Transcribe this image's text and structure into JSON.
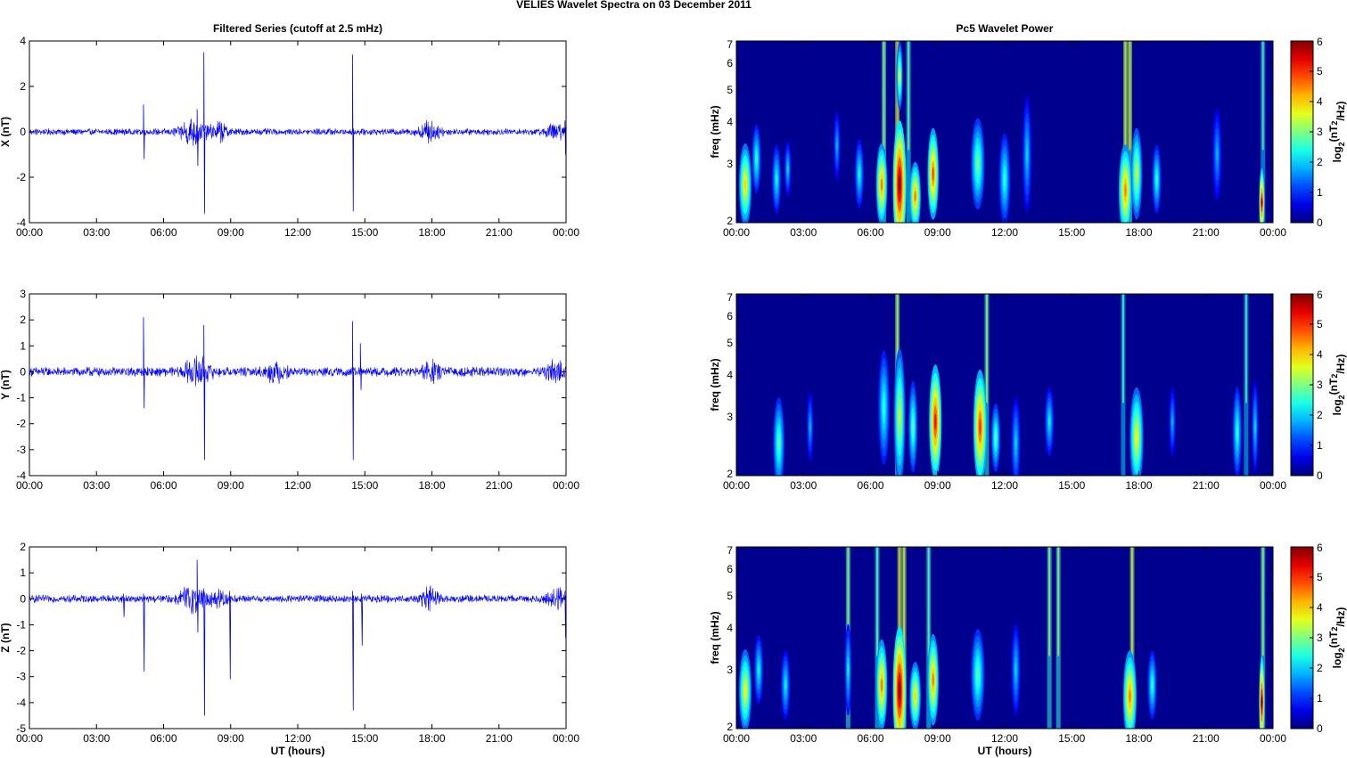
{
  "figure": {
    "title": "VELIES Wavelet Spectra on 03 December  2011",
    "left_title": "Filtered Series (cutoff at 2.5 mHz)",
    "right_title": "Pc5 Wavelet Power",
    "xlabel": "UT (hours)"
  },
  "chart_data": [
    {
      "type": "line",
      "component": "X",
      "ylabel": "X (nT)",
      "xlim_hours": [
        0,
        24
      ],
      "xticks": [
        "00:00",
        "03:00",
        "06:00",
        "09:00",
        "12:00",
        "15:00",
        "18:00",
        "21:00",
        "00:00"
      ],
      "ylim": [
        -4,
        4
      ],
      "yticks": [
        "4",
        "2",
        "0",
        "-2",
        "-4"
      ],
      "line_color": "#0000ff",
      "noise_amplitude": 0.12,
      "activity": [
        {
          "t": 7.3,
          "amp": 0.5,
          "width": 0.8
        },
        {
          "t": 8.5,
          "amp": 0.3,
          "width": 0.5
        },
        {
          "t": 17.9,
          "amp": 0.35,
          "width": 0.6
        },
        {
          "t": 23.5,
          "amp": 0.25,
          "width": 0.6
        }
      ],
      "spikes": [
        {
          "t": 5.1,
          "max": 1.2,
          "min": -1.2
        },
        {
          "t": 7.5,
          "max": 1.0,
          "min": -1.5
        },
        {
          "t": 7.8,
          "max": 3.5,
          "min": -3.6
        },
        {
          "t": 14.45,
          "max": 3.4,
          "min": -3.5
        },
        {
          "t": 23.95,
          "max": 0.5,
          "min": -1.0
        }
      ]
    },
    {
      "type": "line",
      "component": "Y",
      "ylabel": "Y (nT)",
      "xlim_hours": [
        0,
        24
      ],
      "xticks": [
        "00:00",
        "03:00",
        "06:00",
        "09:00",
        "12:00",
        "15:00",
        "18:00",
        "21:00",
        "00:00"
      ],
      "ylim": [
        -4,
        3
      ],
      "yticks": [
        "3",
        "2",
        "1",
        "0",
        "-1",
        "-2",
        "-3",
        "-4"
      ],
      "line_color": "#0000ff",
      "noise_amplitude": 0.15,
      "activity": [
        {
          "t": 7.5,
          "amp": 0.4,
          "width": 0.8
        },
        {
          "t": 11.0,
          "amp": 0.3,
          "width": 0.6
        },
        {
          "t": 18.0,
          "amp": 0.25,
          "width": 0.6
        },
        {
          "t": 23.5,
          "amp": 0.3,
          "width": 0.6
        }
      ],
      "spikes": [
        {
          "t": 5.1,
          "max": 2.1,
          "min": -1.4
        },
        {
          "t": 7.8,
          "max": 1.8,
          "min": -3.4
        },
        {
          "t": 14.45,
          "max": 1.95,
          "min": -3.4
        },
        {
          "t": 14.8,
          "max": 1.1,
          "min": -0.7
        }
      ]
    },
    {
      "type": "line",
      "component": "Z",
      "ylabel": "Z (nT)",
      "xlim_hours": [
        0,
        24
      ],
      "xticks": [
        "00:00",
        "03:00",
        "06:00",
        "09:00",
        "12:00",
        "15:00",
        "18:00",
        "21:00",
        "00:00"
      ],
      "ylim": [
        -5,
        2
      ],
      "yticks": [
        "2",
        "1",
        "0",
        "-1",
        "-2",
        "-3",
        "-4",
        "-5"
      ],
      "line_color": "#0000ff",
      "noise_amplitude": 0.12,
      "activity": [
        {
          "t": 7.3,
          "amp": 0.4,
          "width": 0.8
        },
        {
          "t": 8.5,
          "amp": 0.25,
          "width": 0.5
        },
        {
          "t": 17.9,
          "amp": 0.3,
          "width": 0.6
        },
        {
          "t": 23.6,
          "amp": 0.25,
          "width": 0.6
        }
      ],
      "spikes": [
        {
          "t": 4.2,
          "max": 0.2,
          "min": -0.7
        },
        {
          "t": 5.1,
          "max": 0.2,
          "min": -2.8
        },
        {
          "t": 7.5,
          "max": 1.5,
          "min": -1.3
        },
        {
          "t": 7.8,
          "max": 0.4,
          "min": -4.5
        },
        {
          "t": 8.95,
          "max": 0.3,
          "min": -3.1
        },
        {
          "t": 14.45,
          "max": 0.3,
          "min": -4.3
        },
        {
          "t": 14.85,
          "max": 0.2,
          "min": -1.8
        },
        {
          "t": 23.95,
          "max": 0.3,
          "min": -1.5
        }
      ]
    },
    {
      "type": "heatmap",
      "component": "X",
      "ylabel": "freq (mHz)",
      "yscale": "log",
      "ylim": [
        2,
        7
      ],
      "yticks": [
        "7",
        "6",
        "5",
        "4",
        "3",
        "2"
      ],
      "xticks": [
        "00:00",
        "03:00",
        "06:00",
        "09:00",
        "12:00",
        "15:00",
        "18:00",
        "21:00",
        "00:00"
      ],
      "colorbar": {
        "label": "log2(nT2/Hz)",
        "range": [
          0,
          6
        ],
        "ticks": [
          "6",
          "5",
          "4",
          "3",
          "2",
          "1",
          "0"
        ],
        "colormap": "jet"
      },
      "blobs": [
        {
          "t": 0.4,
          "f": 2.6,
          "dt": 0.28,
          "df": 0.18,
          "p": 4.0
        },
        {
          "t": 0.9,
          "f": 3.1,
          "dt": 0.2,
          "df": 0.15,
          "p": 2.5
        },
        {
          "t": 1.8,
          "f": 2.7,
          "dt": 0.2,
          "df": 0.15,
          "p": 2.3
        },
        {
          "t": 2.3,
          "f": 2.9,
          "dt": 0.15,
          "df": 0.12,
          "p": 2.0
        },
        {
          "t": 4.5,
          "f": 3.4,
          "dt": 0.15,
          "df": 0.15,
          "p": 1.8
        },
        {
          "t": 5.5,
          "f": 2.8,
          "dt": 0.2,
          "df": 0.15,
          "p": 2.3
        },
        {
          "t": 6.5,
          "f": 2.6,
          "dt": 0.25,
          "df": 0.18,
          "p": 4.5
        },
        {
          "t": 7.3,
          "f": 2.6,
          "dt": 0.3,
          "df": 0.28,
          "p": 6.0
        },
        {
          "t": 7.3,
          "f": 5.5,
          "dt": 0.14,
          "df": 0.15,
          "p": 3.5
        },
        {
          "t": 8.0,
          "f": 2.4,
          "dt": 0.25,
          "df": 0.15,
          "p": 4.5
        },
        {
          "t": 8.8,
          "f": 2.8,
          "dt": 0.25,
          "df": 0.2,
          "p": 4.8
        },
        {
          "t": 10.8,
          "f": 3.0,
          "dt": 0.3,
          "df": 0.2,
          "p": 3.0
        },
        {
          "t": 12.0,
          "f": 2.7,
          "dt": 0.25,
          "df": 0.2,
          "p": 2.5
        },
        {
          "t": 13.0,
          "f": 3.2,
          "dt": 0.2,
          "df": 0.25,
          "p": 2.0
        },
        {
          "t": 17.4,
          "f": 2.5,
          "dt": 0.3,
          "df": 0.2,
          "p": 4.5
        },
        {
          "t": 17.9,
          "f": 2.8,
          "dt": 0.25,
          "df": 0.2,
          "p": 3.5
        },
        {
          "t": 18.8,
          "f": 2.7,
          "dt": 0.2,
          "df": 0.15,
          "p": 2.5
        },
        {
          "t": 23.5,
          "f": 2.3,
          "dt": 0.12,
          "df": 0.15,
          "p": 5.5
        },
        {
          "t": 21.5,
          "f": 3.2,
          "dt": 0.2,
          "df": 0.2,
          "p": 1.8
        }
      ],
      "streaks": [
        {
          "t": 6.6,
          "p": 2.5
        },
        {
          "t": 7.2,
          "p": 3.2
        },
        {
          "t": 7.7,
          "p": 2.2
        },
        {
          "t": 17.4,
          "p": 3.0
        },
        {
          "t": 17.6,
          "p": 3.0
        },
        {
          "t": 23.55,
          "p": 2.0
        }
      ]
    },
    {
      "type": "heatmap",
      "component": "Y",
      "ylabel": "freq (mHz)",
      "yscale": "log",
      "ylim": [
        2,
        7
      ],
      "yticks": [
        "7",
        "6",
        "5",
        "4",
        "3",
        "2"
      ],
      "xticks": [
        "00:00",
        "03:00",
        "06:00",
        "09:00",
        "12:00",
        "15:00",
        "18:00",
        "21:00",
        "00:00"
      ],
      "colorbar": {
        "label": "log2(nT2/Hz)",
        "range": [
          0,
          6
        ],
        "ticks": [
          "6",
          "5",
          "4",
          "3",
          "2",
          "1",
          "0"
        ],
        "colormap": "jet"
      },
      "blobs": [
        {
          "t": 1.9,
          "f": 2.5,
          "dt": 0.25,
          "df": 0.2,
          "p": 2.8
        },
        {
          "t": 3.3,
          "f": 2.8,
          "dt": 0.15,
          "df": 0.15,
          "p": 1.8
        },
        {
          "t": 6.6,
          "f": 3.2,
          "dt": 0.25,
          "df": 0.25,
          "p": 2.5
        },
        {
          "t": 7.3,
          "f": 3.0,
          "dt": 0.25,
          "df": 0.3,
          "p": 3.5
        },
        {
          "t": 7.9,
          "f": 2.8,
          "dt": 0.2,
          "df": 0.2,
          "p": 2.8
        },
        {
          "t": 8.9,
          "f": 2.9,
          "dt": 0.28,
          "df": 0.25,
          "p": 5.2
        },
        {
          "t": 10.9,
          "f": 2.8,
          "dt": 0.3,
          "df": 0.25,
          "p": 5.0
        },
        {
          "t": 11.6,
          "f": 2.6,
          "dt": 0.2,
          "df": 0.15,
          "p": 2.8
        },
        {
          "t": 12.5,
          "f": 2.5,
          "dt": 0.2,
          "df": 0.2,
          "p": 2.0
        },
        {
          "t": 14.0,
          "f": 2.9,
          "dt": 0.2,
          "df": 0.15,
          "p": 2.2
        },
        {
          "t": 17.9,
          "f": 2.6,
          "dt": 0.3,
          "df": 0.22,
          "p": 3.8
        },
        {
          "t": 19.5,
          "f": 2.9,
          "dt": 0.15,
          "df": 0.15,
          "p": 1.8
        },
        {
          "t": 22.4,
          "f": 2.7,
          "dt": 0.2,
          "df": 0.2,
          "p": 2.5
        },
        {
          "t": 23.2,
          "f": 2.8,
          "dt": 0.15,
          "df": 0.2,
          "p": 2.0
        }
      ],
      "streaks": [
        {
          "t": 7.2,
          "p": 2.8
        },
        {
          "t": 11.2,
          "p": 2.5
        },
        {
          "t": 17.3,
          "p": 2.0
        },
        {
          "t": 22.8,
          "p": 2.0
        }
      ]
    },
    {
      "type": "heatmap",
      "component": "Z",
      "ylabel": "freq (mHz)",
      "yscale": "log",
      "ylim": [
        2,
        7
      ],
      "yticks": [
        "7",
        "6",
        "5",
        "4",
        "3",
        "2"
      ],
      "xticks": [
        "00:00",
        "03:00",
        "06:00",
        "09:00",
        "12:00",
        "15:00",
        "18:00",
        "21:00",
        "00:00"
      ],
      "colorbar": {
        "label": "log2(nT2/Hz)",
        "range": [
          0,
          6
        ],
        "ticks": [
          "6",
          "5",
          "4",
          "3",
          "2",
          "1",
          "0"
        ],
        "colormap": "jet"
      },
      "blobs": [
        {
          "t": 0.4,
          "f": 2.6,
          "dt": 0.28,
          "df": 0.18,
          "p": 3.8
        },
        {
          "t": 1.0,
          "f": 3.0,
          "dt": 0.2,
          "df": 0.15,
          "p": 2.3
        },
        {
          "t": 2.2,
          "f": 2.7,
          "dt": 0.2,
          "df": 0.15,
          "p": 2.2
        },
        {
          "t": 5.0,
          "f": 3.0,
          "dt": 0.15,
          "df": 0.2,
          "p": 2.2
        },
        {
          "t": 6.5,
          "f": 2.7,
          "dt": 0.25,
          "df": 0.2,
          "p": 4.5
        },
        {
          "t": 7.3,
          "f": 2.6,
          "dt": 0.3,
          "df": 0.28,
          "p": 6.0
        },
        {
          "t": 8.0,
          "f": 2.5,
          "dt": 0.25,
          "df": 0.15,
          "p": 4.0
        },
        {
          "t": 8.8,
          "f": 2.8,
          "dt": 0.25,
          "df": 0.2,
          "p": 4.5
        },
        {
          "t": 10.8,
          "f": 2.9,
          "dt": 0.3,
          "df": 0.2,
          "p": 2.8
        },
        {
          "t": 12.5,
          "f": 3.0,
          "dt": 0.2,
          "df": 0.2,
          "p": 2.0
        },
        {
          "t": 17.6,
          "f": 2.5,
          "dt": 0.3,
          "df": 0.2,
          "p": 4.5
        },
        {
          "t": 18.6,
          "f": 2.7,
          "dt": 0.2,
          "df": 0.15,
          "p": 2.5
        },
        {
          "t": 23.5,
          "f": 2.4,
          "dt": 0.12,
          "df": 0.2,
          "p": 5.8
        }
      ],
      "streaks": [
        {
          "t": 5.0,
          "p": 2.5
        },
        {
          "t": 6.3,
          "p": 2.2
        },
        {
          "t": 7.3,
          "p": 3.2
        },
        {
          "t": 7.5,
          "p": 3.0
        },
        {
          "t": 8.6,
          "p": 2.2
        },
        {
          "t": 14.0,
          "p": 2.5
        },
        {
          "t": 14.4,
          "p": 2.5
        },
        {
          "t": 17.7,
          "p": 3.0
        },
        {
          "t": 23.55,
          "p": 2.5
        }
      ]
    }
  ]
}
